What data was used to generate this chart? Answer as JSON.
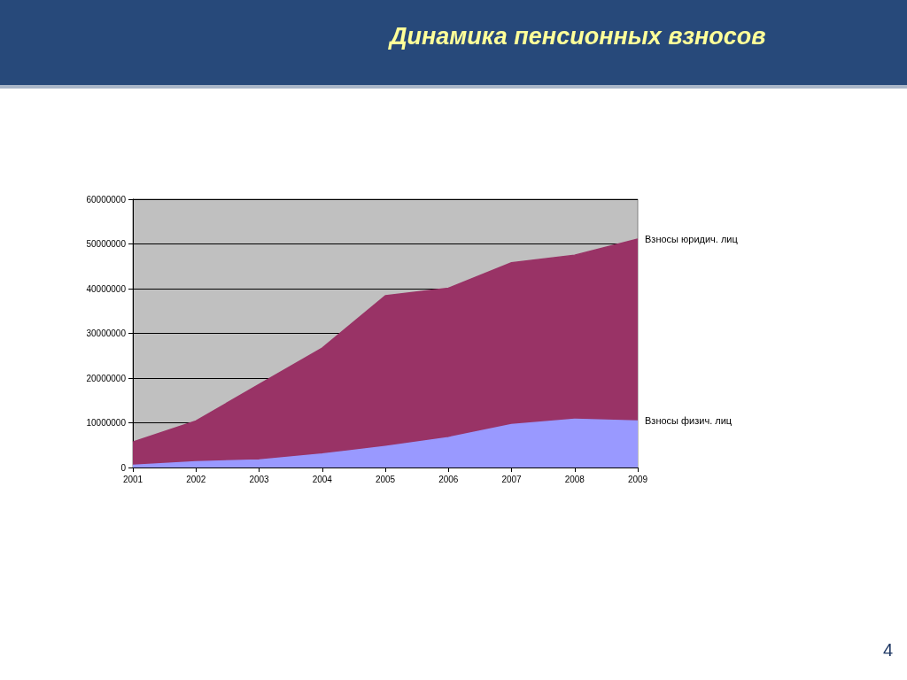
{
  "chart_data": {
    "type": "area",
    "title": "Динамика пенсионных взносов",
    "categories": [
      "2001",
      "2002",
      "2003",
      "2004",
      "2005",
      "2006",
      "2007",
      "2008",
      "2009"
    ],
    "series": [
      {
        "name": "Взносы юридич. лиц",
        "color": "#993366",
        "values": [
          5700000,
          10400000,
          18600000,
          26700000,
          38400000,
          40100000,
          45800000,
          47500000,
          51100000
        ]
      },
      {
        "name": "Взносы физич. лиц",
        "color": "#9999ff",
        "values": [
          500000,
          1300000,
          1700000,
          3000000,
          4700000,
          6700000,
          9600000,
          10800000,
          10400000
        ]
      }
    ],
    "ylim": [
      0,
      60000000
    ],
    "yticks": [
      0,
      10000000,
      20000000,
      30000000,
      40000000,
      50000000,
      60000000
    ],
    "grid": "y",
    "marker": "none",
    "annotations": [
      "4"
    ]
  }
}
